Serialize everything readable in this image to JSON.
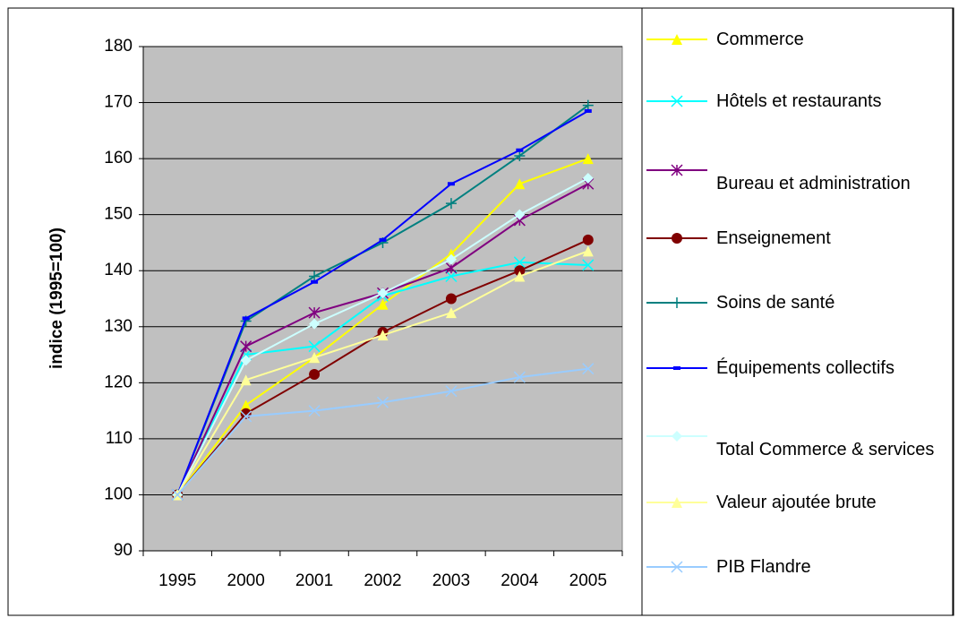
{
  "chart_data": {
    "type": "line",
    "y_label": "indice (1995=100)",
    "categories": [
      "1995",
      "2000",
      "2001",
      "2002",
      "2003",
      "2004",
      "2005"
    ],
    "ylim": [
      90,
      180
    ],
    "yticks": [
      90,
      100,
      110,
      120,
      130,
      140,
      150,
      160,
      170,
      180
    ],
    "grid": true,
    "legend": "right",
    "series": [
      {
        "name": "Commerce",
        "color": "#ffff00",
        "marker": "triangle",
        "values": [
          100,
          116,
          124.5,
          134,
          143,
          155.5,
          160
        ]
      },
      {
        "name": "Hôtels et restaurants",
        "color": "#00ffff",
        "marker": "x",
        "values": [
          100,
          125,
          126.5,
          135.5,
          139,
          141.5,
          141
        ]
      },
      {
        "name": "Bureau et administration",
        "color": "#800080",
        "marker": "star",
        "values": [
          100,
          126.5,
          132.5,
          136,
          140.5,
          149,
          155.5
        ]
      },
      {
        "name": "Enseignement",
        "color": "#800000",
        "marker": "circle",
        "values": [
          100,
          114.5,
          121.5,
          129,
          135,
          140,
          145.5
        ]
      },
      {
        "name": "Soins de santé",
        "color": "#008080",
        "marker": "plus",
        "values": [
          100,
          131,
          139,
          145,
          152,
          160.5,
          169.5
        ]
      },
      {
        "name": "Équipements collectifs",
        "color": "#0000ff",
        "marker": "dash",
        "values": [
          100,
          131.5,
          138,
          145.5,
          155.5,
          161.5,
          168.5
        ]
      },
      {
        "name": "Total Commerce & services",
        "color": "#ccffff",
        "marker": "diamond",
        "values": [
          100,
          124,
          130.5,
          136,
          142,
          150,
          156.5
        ]
      },
      {
        "name": "Valeur ajoutée brute",
        "color": "#ffff99",
        "marker": "triangle",
        "values": [
          100,
          120.5,
          124.5,
          128.5,
          132.5,
          139,
          143.5
        ]
      },
      {
        "name": "PIB Flandre",
        "color": "#99ccff",
        "marker": "x",
        "values": [
          100,
          114,
          115,
          116.5,
          118.5,
          121,
          122.5
        ]
      }
    ]
  }
}
